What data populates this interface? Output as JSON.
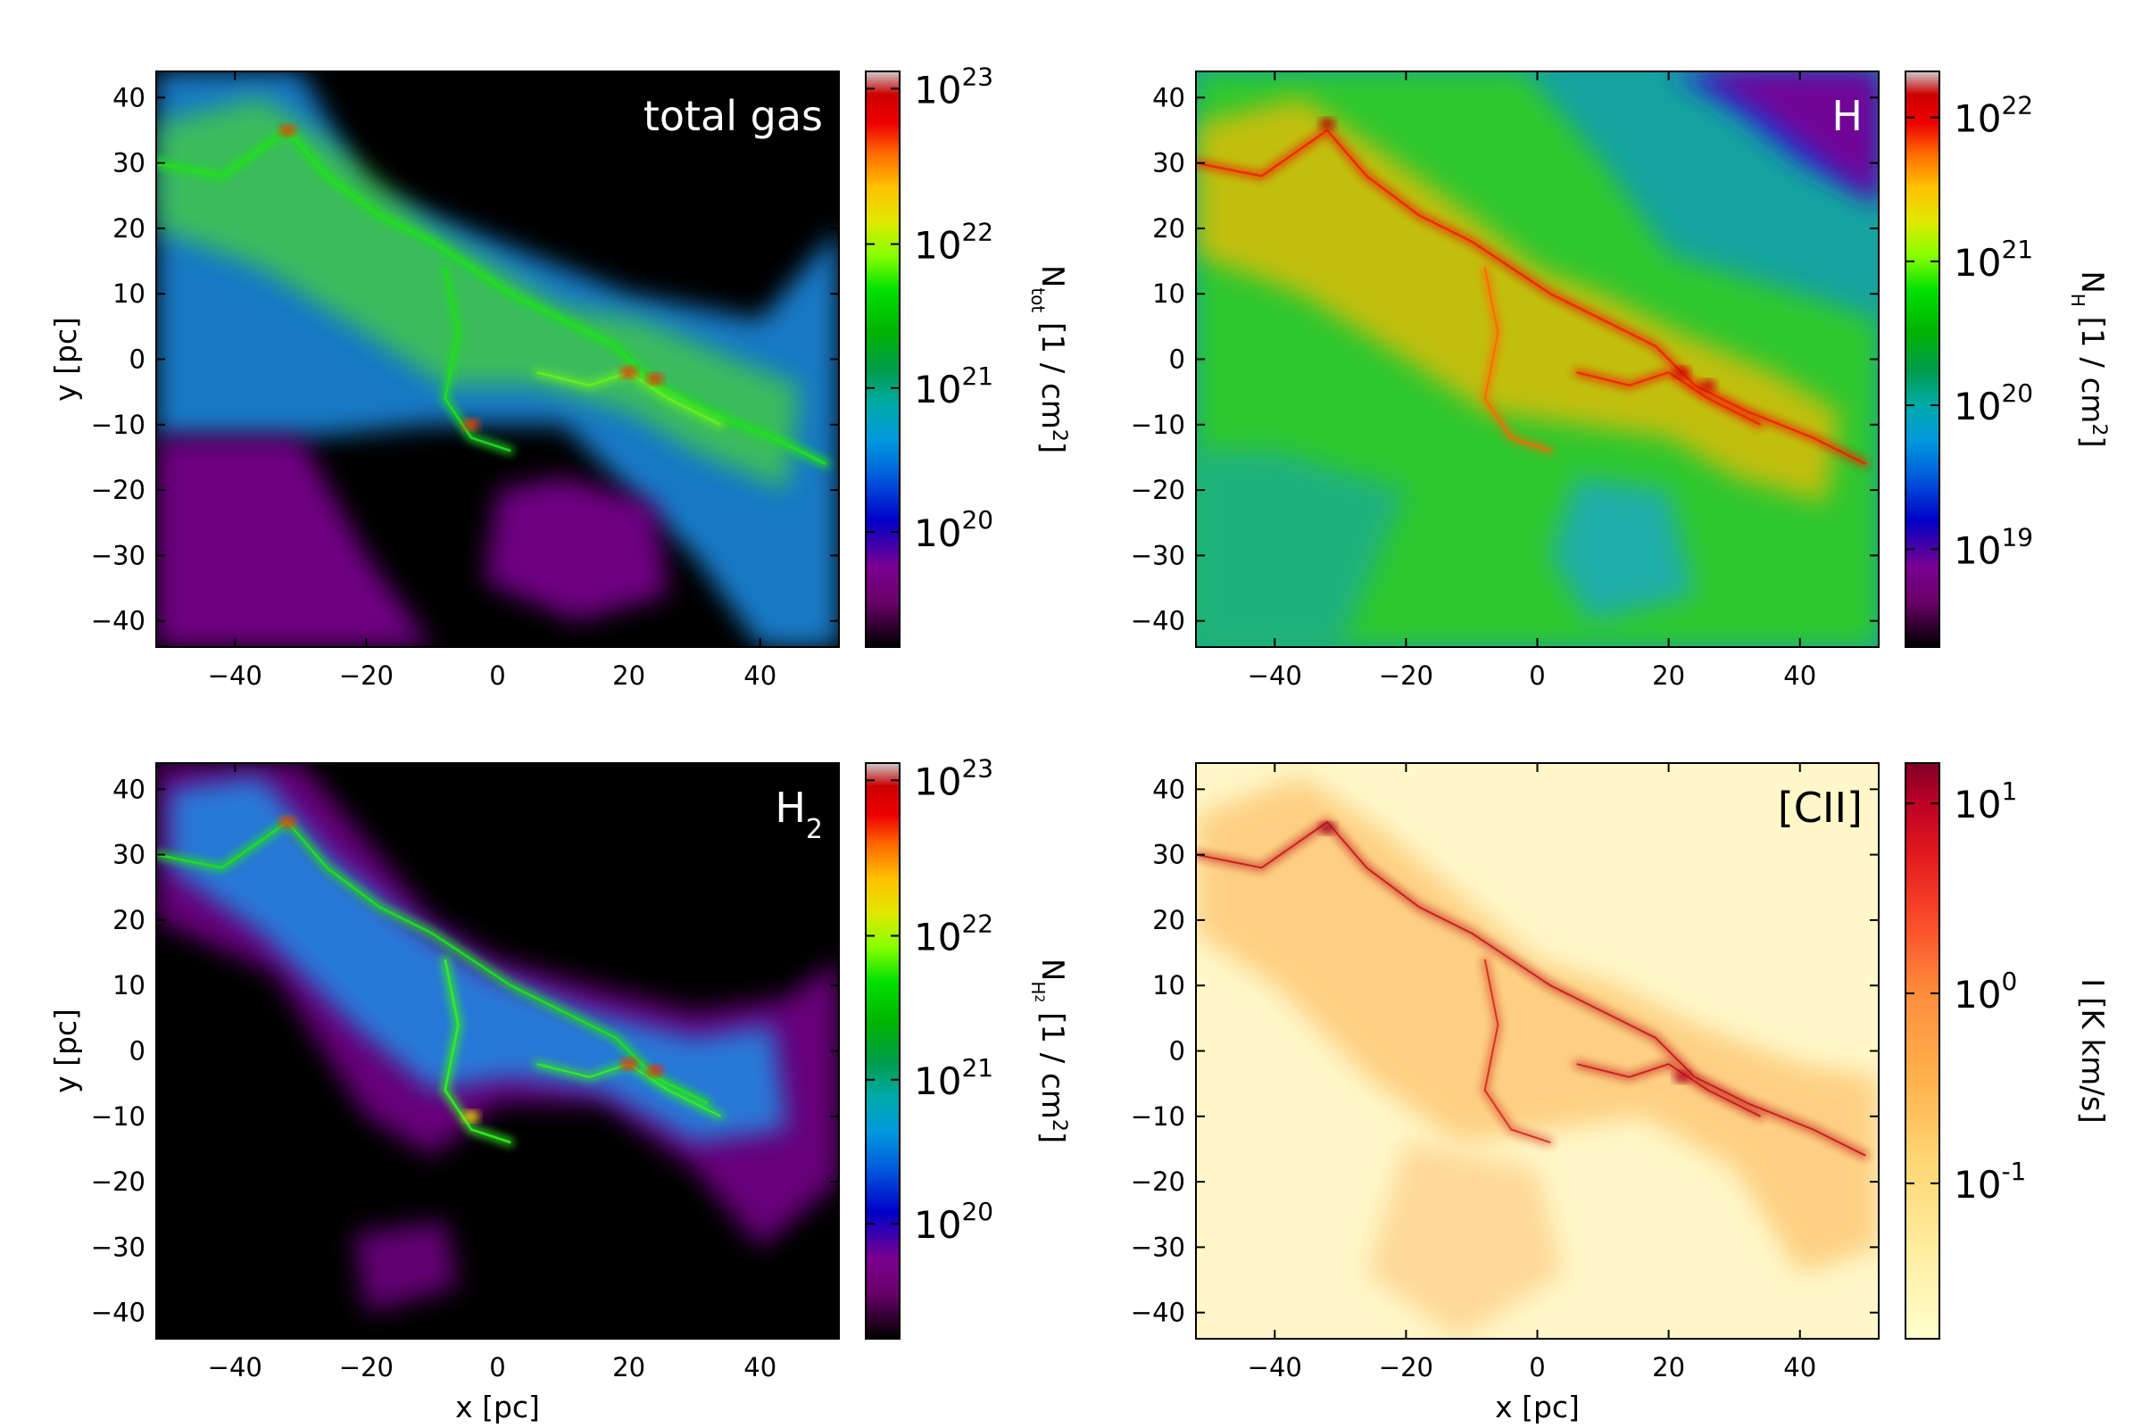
{
  "figure": {
    "panels": [
      {
        "id": "total-gas",
        "label": "total gas",
        "label_color": "#ffffff",
        "cmap": "nipy_spectral",
        "background": "#000000",
        "colorbar": {
          "label_main": "N",
          "label_sub": "tot",
          "label_unit": " [1 / cm",
          "label_sup": "2",
          "label_end": "]",
          "ticks": [
            {
              "base": "10",
              "exp": "20",
              "frac": 0.2
            },
            {
              "base": "10",
              "exp": "21",
              "frac": 0.45
            },
            {
              "base": "10",
              "exp": "22",
              "frac": 0.7
            },
            {
              "base": "10",
              "exp": "23",
              "frac": 0.97
            }
          ]
        },
        "x_ticks": [
          "−40",
          "−20",
          "0",
          "20",
          "40"
        ],
        "y_ticks": [
          "−40",
          "−30",
          "−20",
          "−10",
          "0",
          "10",
          "20",
          "30",
          "40"
        ],
        "xlabel": "",
        "ylabel": "y [pc]"
      },
      {
        "id": "h",
        "label": "H",
        "label_color": "#ffffff",
        "cmap": "nipy_spectral",
        "background": "#16a3a0",
        "colorbar": {
          "label_main": "N",
          "label_sub": "H",
          "label_unit": " [1 / cm",
          "label_sup": "2",
          "label_end": "]",
          "ticks": [
            {
              "base": "10",
              "exp": "19",
              "frac": 0.17
            },
            {
              "base": "10",
              "exp": "20",
              "frac": 0.42
            },
            {
              "base": "10",
              "exp": "21",
              "frac": 0.67
            },
            {
              "base": "10",
              "exp": "22",
              "frac": 0.92
            }
          ]
        },
        "x_ticks": [
          "−40",
          "−20",
          "0",
          "20",
          "40"
        ],
        "y_ticks": [
          "−40",
          "−30",
          "−20",
          "−10",
          "0",
          "10",
          "20",
          "30",
          "40"
        ],
        "xlabel": "",
        "ylabel": ""
      },
      {
        "id": "h2",
        "label": "H",
        "label_sub": "2",
        "label_color": "#ffffff",
        "cmap": "nipy_spectral",
        "background": "#000000",
        "colorbar": {
          "label_main": "N",
          "label_sub": "H",
          "label_subsub": "2",
          "label_unit": " [1 / cm",
          "label_sup": "2",
          "label_end": "]",
          "ticks": [
            {
              "base": "10",
              "exp": "20",
              "frac": 0.2
            },
            {
              "base": "10",
              "exp": "21",
              "frac": 0.45
            },
            {
              "base": "10",
              "exp": "22",
              "frac": 0.7
            },
            {
              "base": "10",
              "exp": "23",
              "frac": 0.97
            }
          ]
        },
        "x_ticks": [
          "−40",
          "−20",
          "0",
          "20",
          "40"
        ],
        "y_ticks": [
          "−40",
          "−30",
          "−20",
          "−10",
          "0",
          "10",
          "20",
          "30",
          "40"
        ],
        "xlabel": "x [pc]",
        "ylabel": "y [pc]"
      },
      {
        "id": "cii",
        "label": "[CII]",
        "label_color": "#000000",
        "cmap": "YlOrRd",
        "background": "#fff7c8",
        "colorbar": {
          "label_main": "I [K km/s]",
          "label_sub": "",
          "label_unit": "",
          "label_sup": "",
          "label_end": "",
          "ticks": [
            {
              "base": "10",
              "exp": "-1",
              "frac": 0.27
            },
            {
              "base": "10",
              "exp": "0",
              "frac": 0.6
            },
            {
              "base": "10",
              "exp": "1",
              "frac": 0.93
            }
          ]
        },
        "x_ticks": [
          "−40",
          "−20",
          "0",
          "20",
          "40"
        ],
        "y_ticks": [
          "−40",
          "−30",
          "−20",
          "−10",
          "0",
          "10",
          "20",
          "30",
          "40"
        ],
        "xlabel": "x [pc]",
        "ylabel": ""
      }
    ]
  },
  "chart_data": [
    {
      "type": "heatmap",
      "title": "total gas",
      "xlabel": "",
      "ylabel": "y [pc]",
      "xlim": [
        -52,
        52
      ],
      "ylim": [
        -44,
        44
      ],
      "x_ticks": [
        -40,
        -20,
        0,
        20,
        40
      ],
      "y_ticks": [
        -40,
        -30,
        -20,
        -10,
        0,
        10,
        20,
        30,
        40
      ],
      "colorbar_label": "N_tot [1 / cm^2]",
      "colorbar_scale": "log",
      "colorbar_ticks": [
        "10^20",
        "10^21",
        "10^22",
        "10^23"
      ],
      "grid": false
    },
    {
      "type": "heatmap",
      "title": "H",
      "xlabel": "",
      "ylabel": "",
      "xlim": [
        -52,
        52
      ],
      "ylim": [
        -44,
        44
      ],
      "x_ticks": [
        -40,
        -20,
        0,
        20,
        40
      ],
      "y_ticks": [
        -40,
        -30,
        -20,
        -10,
        0,
        10,
        20,
        30,
        40
      ],
      "colorbar_label": "N_H [1 / cm^2]",
      "colorbar_scale": "log",
      "colorbar_ticks": [
        "10^19",
        "10^20",
        "10^21",
        "10^22"
      ],
      "grid": false
    },
    {
      "type": "heatmap",
      "title": "H_2",
      "xlabel": "x [pc]",
      "ylabel": "y [pc]",
      "xlim": [
        -52,
        52
      ],
      "ylim": [
        -44,
        44
      ],
      "x_ticks": [
        -40,
        -20,
        0,
        20,
        40
      ],
      "y_ticks": [
        -40,
        -30,
        -20,
        -10,
        0,
        10,
        20,
        30,
        40
      ],
      "colorbar_label": "N_H2 [1 / cm^2]",
      "colorbar_scale": "log",
      "colorbar_ticks": [
        "10^20",
        "10^21",
        "10^22",
        "10^23"
      ],
      "grid": false
    },
    {
      "type": "heatmap",
      "title": "[CII]",
      "xlabel": "x [pc]",
      "ylabel": "",
      "xlim": [
        -52,
        52
      ],
      "ylim": [
        -44,
        44
      ],
      "x_ticks": [
        -40,
        -20,
        0,
        20,
        40
      ],
      "y_ticks": [
        -40,
        -30,
        -20,
        -10,
        0,
        10,
        20,
        30,
        40
      ],
      "colorbar_label": "I [K km/s]",
      "colorbar_scale": "log",
      "colorbar_ticks": [
        "10^-1",
        "10^0",
        "10^1"
      ],
      "grid": false
    }
  ]
}
